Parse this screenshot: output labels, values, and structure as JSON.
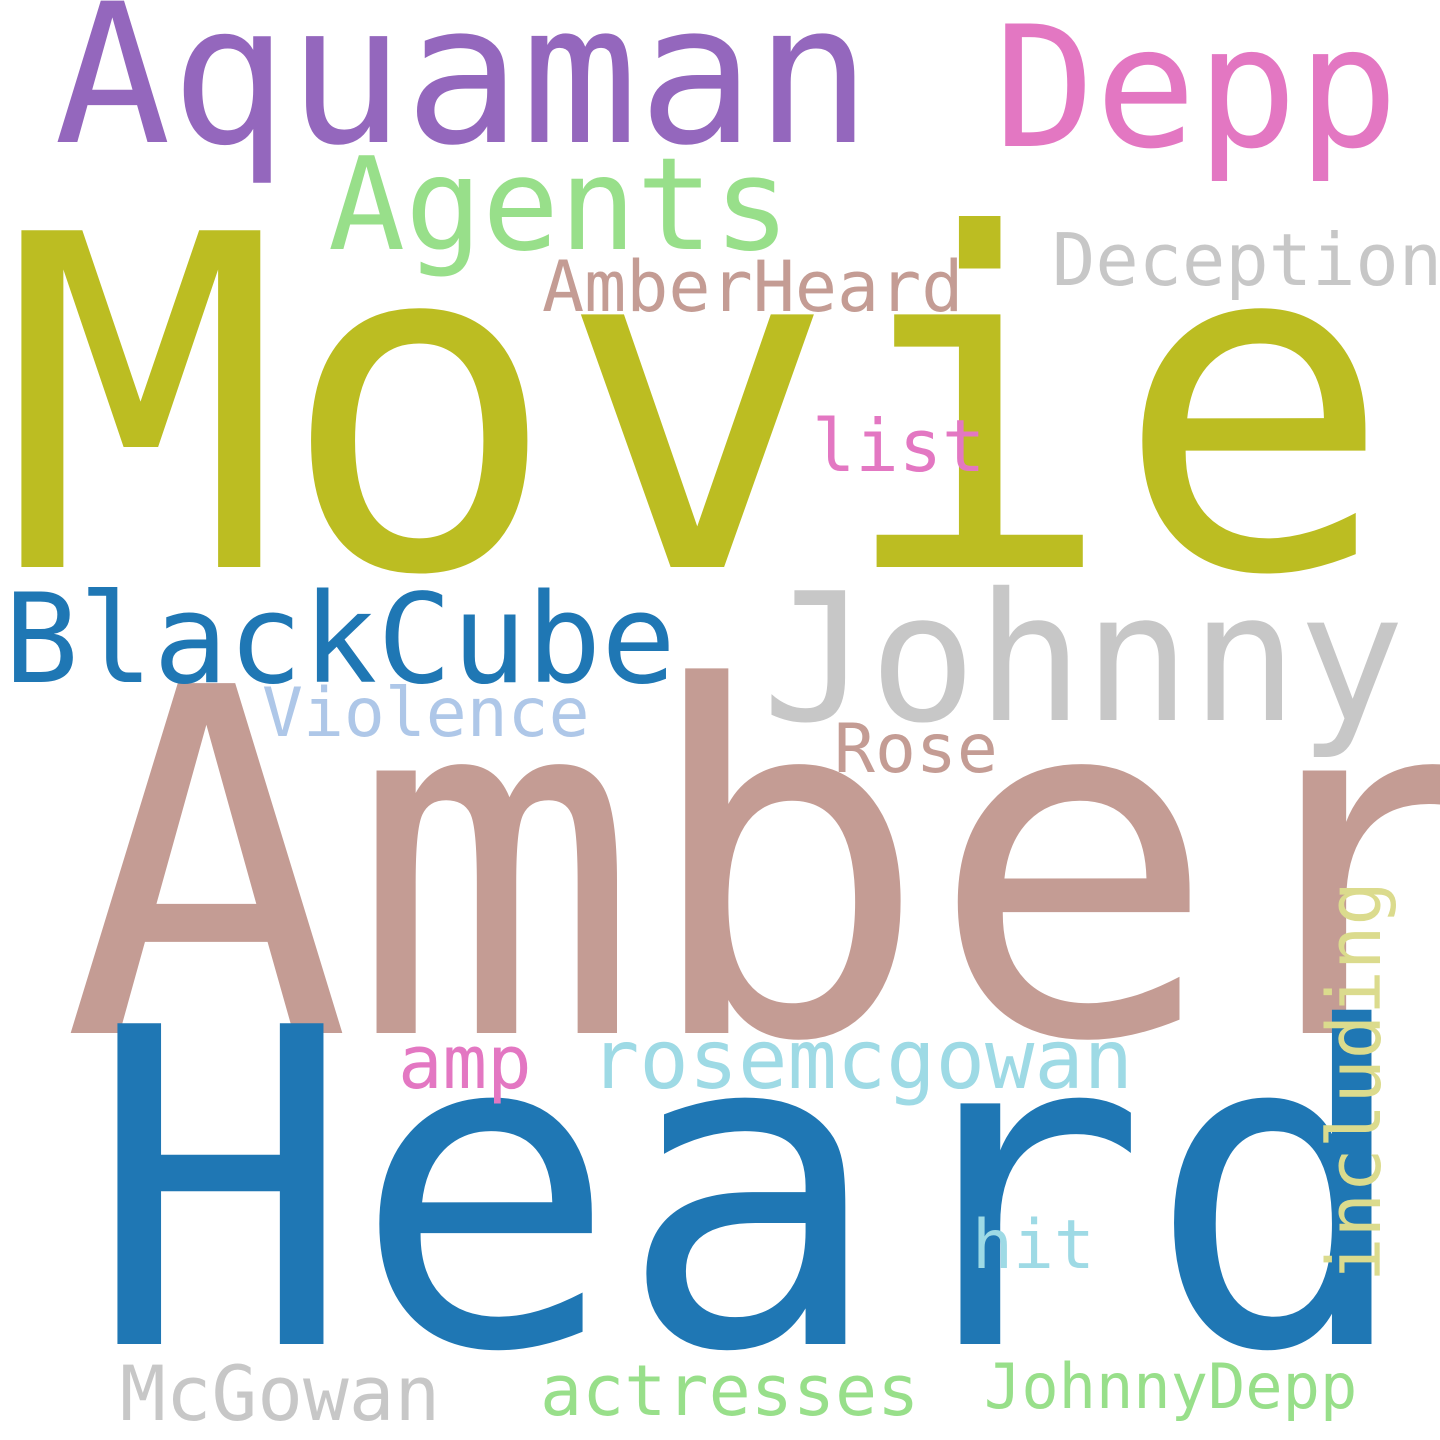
{
  "word_cloud": {
    "words": [
      {
        "text": "Movie",
        "color": "#bcbd22"
      },
      {
        "text": "Amber",
        "color": "#c49c94"
      },
      {
        "text": "Heard",
        "color": "#1f77b4"
      },
      {
        "text": "Aquaman",
        "color": "#9467bd"
      },
      {
        "text": "Depp",
        "color": "#e377c2"
      },
      {
        "text": "Agents",
        "color": "#98df8a"
      },
      {
        "text": "Deception",
        "color": "#c7c7c7"
      },
      {
        "text": "AmberHeard",
        "color": "#c49c94"
      },
      {
        "text": "list",
        "color": "#e377c2"
      },
      {
        "text": "BlackCube",
        "color": "#1f77b4"
      },
      {
        "text": "Johnny",
        "color": "#c7c7c7"
      },
      {
        "text": "Violence",
        "color": "#aec7e8"
      },
      {
        "text": "Rose",
        "color": "#c49c94"
      },
      {
        "text": "amp",
        "color": "#e377c2"
      },
      {
        "text": "rosemcgowan",
        "color": "#9edae5"
      },
      {
        "text": "including",
        "color": "#dbdb8d"
      },
      {
        "text": "hit",
        "color": "#9edae5"
      },
      {
        "text": "McGowan",
        "color": "#c7c7c7"
      },
      {
        "text": "actresses",
        "color": "#98df8a"
      },
      {
        "text": "JohnnyDepp",
        "color": "#98df8a"
      }
    ]
  }
}
